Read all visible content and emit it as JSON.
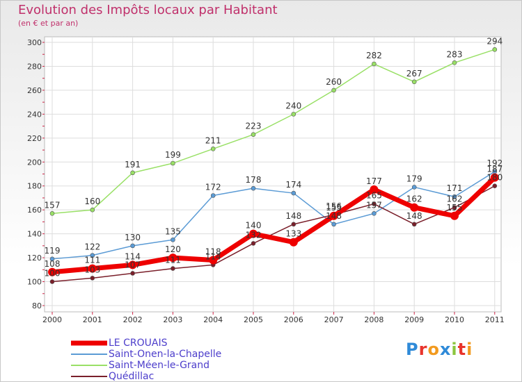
{
  "title": "Evolution des Impôts locaux par Habitant",
  "subtitle": "(en € et par an)",
  "logo": "Proxiti",
  "colors": {
    "LE CROUAIS": "#ee0000",
    "Saint-Onen-la-Chapelle": "#5b9bd5",
    "Saint-Méen-le-Grand": "#99e066",
    "Quédillac": "#7a1f2a"
  },
  "chart_data": {
    "type": "line",
    "title": "Evolution des Impôts locaux par Habitant",
    "ylabel": "(en € et par an)",
    "xlabel": "",
    "categories": [
      "2000",
      "2001",
      "2002",
      "2003",
      "2004",
      "2005",
      "2006",
      "2007",
      "2008",
      "2009",
      "2010",
      "2011"
    ],
    "ylim": [
      80,
      300
    ],
    "yticks": [
      "80",
      "100",
      "120",
      "140",
      "160",
      "180",
      "200",
      "220",
      "240",
      "260",
      "280",
      "300"
    ],
    "grid": true,
    "legend_position": "bottom-left",
    "series": [
      {
        "name": "LE CROUAIS",
        "values": [
          108,
          111,
          114,
          120,
          118,
          140,
          133,
          155,
          177,
          162,
          155,
          187
        ],
        "labels": [
          "108",
          "111",
          "114",
          "120",
          "118",
          "140",
          "133",
          "155",
          "177",
          "162",
          "155",
          "187"
        ]
      },
      {
        "name": "Saint-Onen-la-Chapelle",
        "values": [
          119,
          122,
          130,
          135,
          172,
          178,
          174,
          148,
          157,
          179,
          171,
          192
        ],
        "labels": [
          "119",
          "122",
          "130",
          "135",
          "172",
          "178",
          "174",
          "148",
          "157",
          "179",
          "171",
          "192"
        ]
      },
      {
        "name": "Saint-Méen-le-Grand",
        "values": [
          157,
          160,
          191,
          199,
          211,
          223,
          240,
          260,
          282,
          267,
          283,
          294
        ],
        "labels": [
          "157",
          "160",
          "191",
          "199",
          "211",
          "223",
          "240",
          "260",
          "282",
          "267",
          "283",
          "294"
        ]
      },
      {
        "name": "Quédillac",
        "values": [
          100,
          103,
          107,
          111,
          114,
          132,
          148,
          156,
          165,
          148,
          162,
          180
        ],
        "labels": [
          "100",
          "103",
          "107",
          "111",
          "114",
          "132",
          "148",
          "156",
          "165",
          "148",
          "162",
          "180"
        ]
      }
    ]
  }
}
